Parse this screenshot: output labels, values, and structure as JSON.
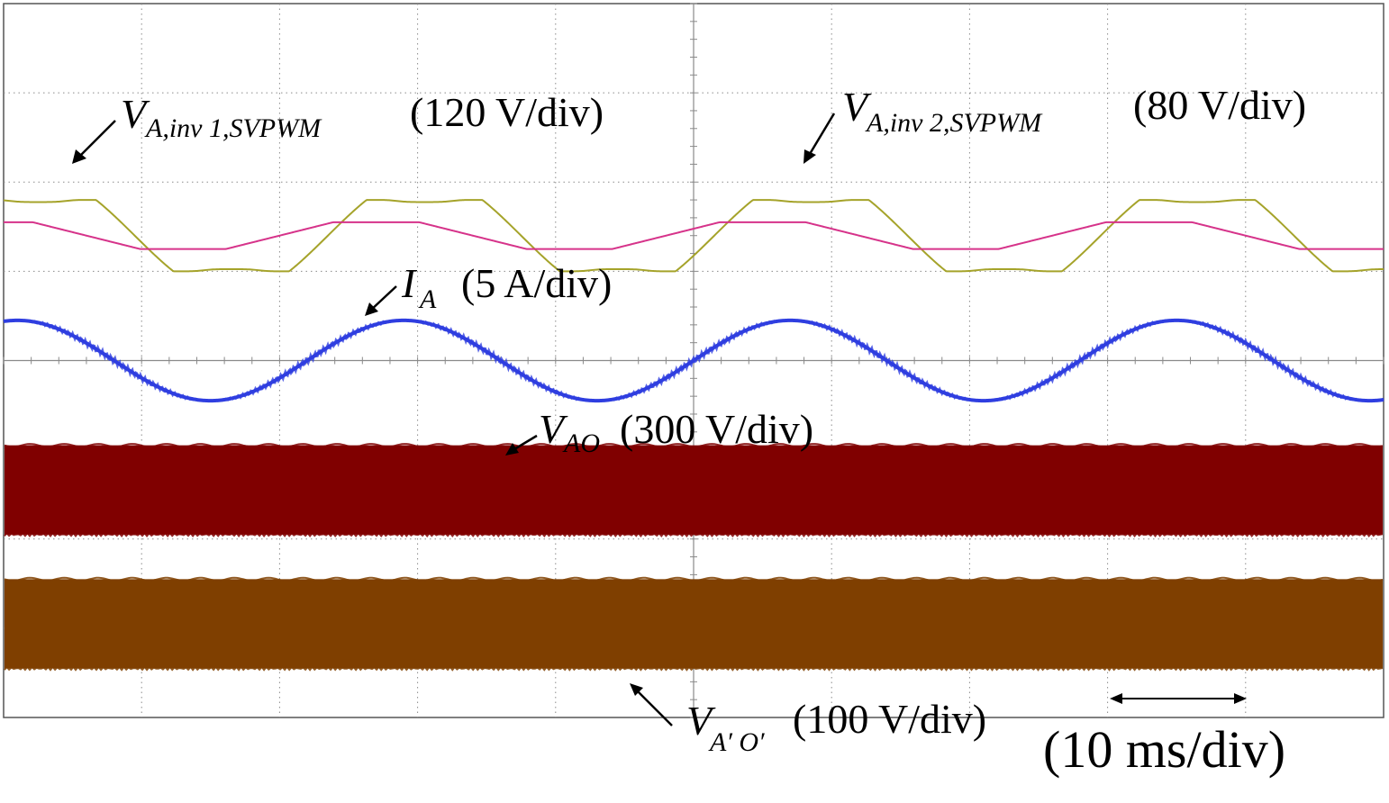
{
  "chart_data": {
    "type": "line",
    "grid": true,
    "x_divisions": 10,
    "y_divisions": 8,
    "timebase": "(10 ms/div)",
    "colors": {
      "inv1": "#a5a32a",
      "inv2": "#d6338a",
      "current": "#2f3fe0",
      "vao": "#800000",
      "vapop": "#7f3f00",
      "grid": "#8a8a8a",
      "frame": "#555555"
    },
    "series": [
      {
        "id": "inv1",
        "label_main": "V",
        "label_sub": "A,inv 1,SVPWM",
        "label_scale": "(120 V/div)",
        "period_div": 2.8,
        "phase_div": -0.45,
        "offset_div": 1.4,
        "amplitude_div": 0.4,
        "shape": "clipped"
      },
      {
        "id": "inv2",
        "label_main": "V",
        "label_sub": "A,inv 2,SVPWM",
        "label_scale": "(80 V/div)",
        "period_div": 2.8,
        "phase_div": -0.8,
        "offset_div": 1.4,
        "amplitude_div": 0.15,
        "shape": "trapezoid"
      },
      {
        "id": "current",
        "label_main": "I",
        "label_sub": "A",
        "label_scale": "(5 A/div)",
        "period_div": 2.8,
        "phase_div": -0.6,
        "offset_div": 0.0,
        "amplitude_div": 0.45,
        "shape": "sine"
      },
      {
        "id": "vao",
        "label_main": "V",
        "label_sub": "AO",
        "label_scale": "(300 V/div)",
        "band_center_div": -1.45,
        "band_half_div": 0.5,
        "shape": "pwm-band"
      },
      {
        "id": "vapop",
        "label_main": "V",
        "label_sub": "A′ O′",
        "label_scale": "(100 V/div)",
        "band_center_div": -2.95,
        "band_half_div": 0.5,
        "shape": "pwm-band"
      }
    ]
  }
}
